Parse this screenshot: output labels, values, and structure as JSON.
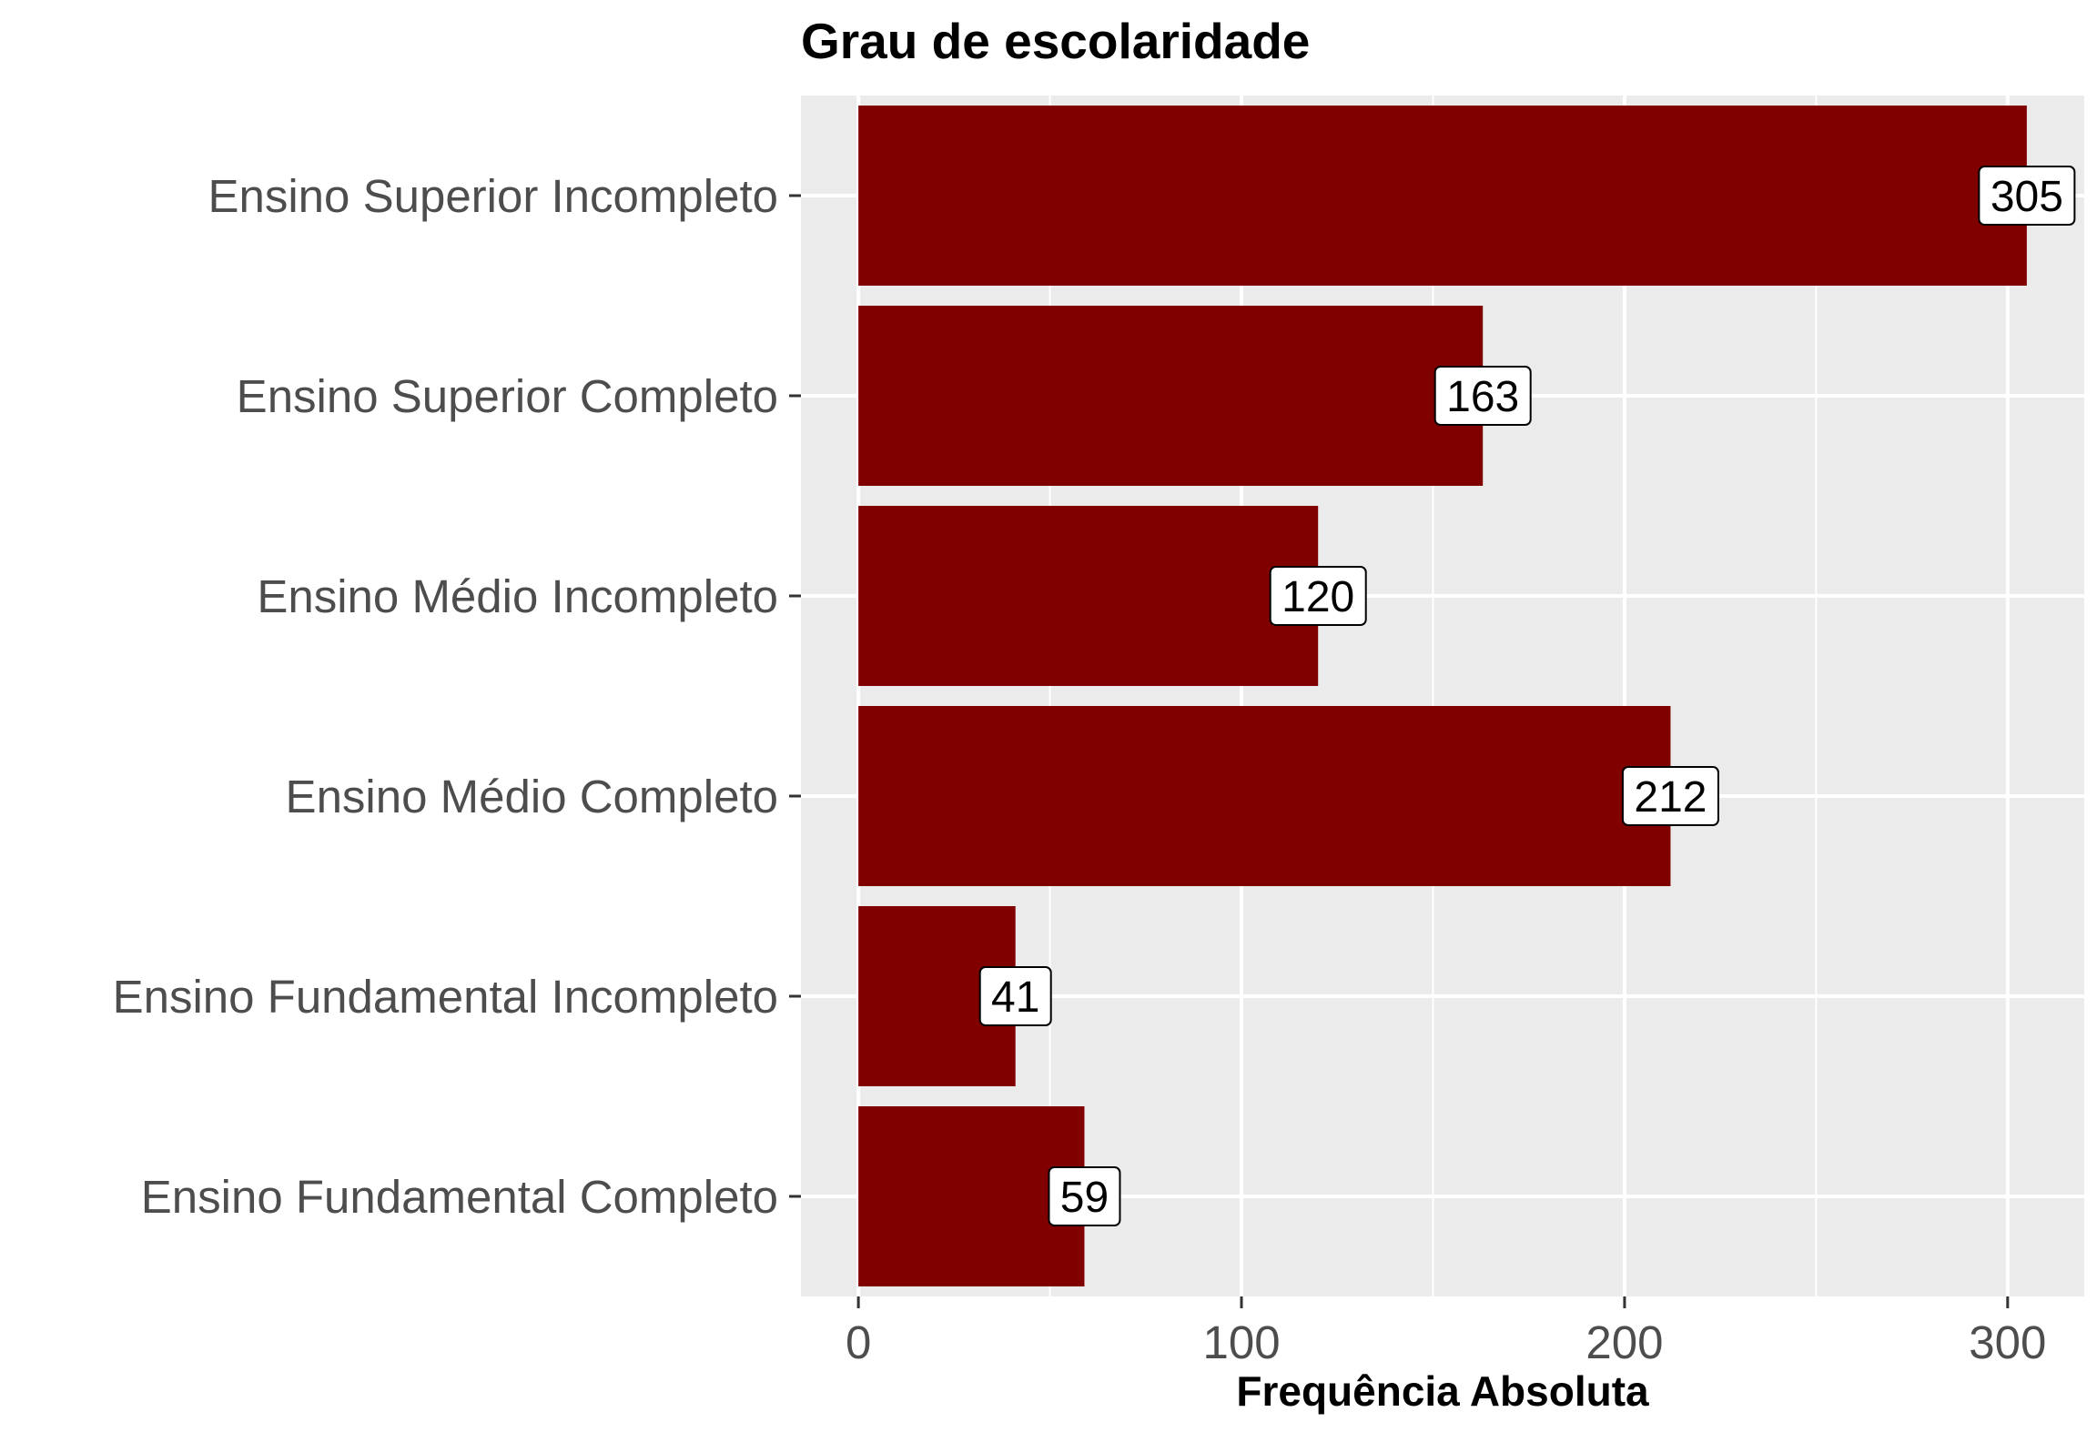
{
  "chart_data": {
    "type": "bar",
    "orientation": "horizontal",
    "title": "Grau de escolaridade",
    "xlabel": "Frequência Absoluta",
    "ylabel": "",
    "categories": [
      "Ensino Fundamental Completo",
      "Ensino Fundamental Incompleto",
      "Ensino Médio Completo",
      "Ensino Médio Incompleto",
      "Ensino Superior Completo",
      "Ensino Superior Incompleto"
    ],
    "values": [
      59,
      41,
      212,
      120,
      163,
      305
    ],
    "xlim": [
      -15,
      320
    ],
    "x_ticks": [
      0,
      100,
      200,
      300
    ],
    "x_tick_labels": [
      "0",
      "100",
      "200",
      "300"
    ],
    "grid": true,
    "legend": "none",
    "colors": {
      "bar": "#800000",
      "panel_background": "#ebebeb",
      "grid": "#ffffff",
      "label_fill": "#ffffff",
      "label_border": "#000000"
    }
  }
}
